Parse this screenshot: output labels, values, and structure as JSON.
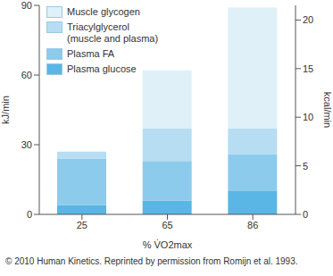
{
  "chart_data": {
    "type": "bar",
    "stacked": true,
    "categories": [
      "25",
      "65",
      "86"
    ],
    "x_label": "% V̇O2max",
    "y_label": "kJ/min",
    "y2_label": "kcal/min",
    "ylim": [
      0,
      90
    ],
    "yticks": [
      0,
      30,
      60,
      90
    ],
    "y2lim": [
      0,
      21.51
    ],
    "y2ticks": [
      0,
      5,
      10,
      15,
      20
    ],
    "legend": "upper left",
    "series": [
      {
        "name": "Plasma glucose",
        "color": "#5ab6e4",
        "values": [
          4,
          6,
          10
        ]
      },
      {
        "name": "Plasma FA",
        "color": "#8ccbec",
        "values": [
          20,
          17,
          16
        ]
      },
      {
        "name": "Triacylglycerol (muscle and plasma)",
        "color": "#b6ddf2",
        "values": [
          3,
          14,
          11
        ]
      },
      {
        "name": "Muscle glycogen",
        "color": "#dff0f9",
        "values": [
          0,
          25,
          52
        ]
      }
    ],
    "caption": "© 2010 Human Kinetics. Reprinted by permission from Romijn et al. 1993."
  }
}
